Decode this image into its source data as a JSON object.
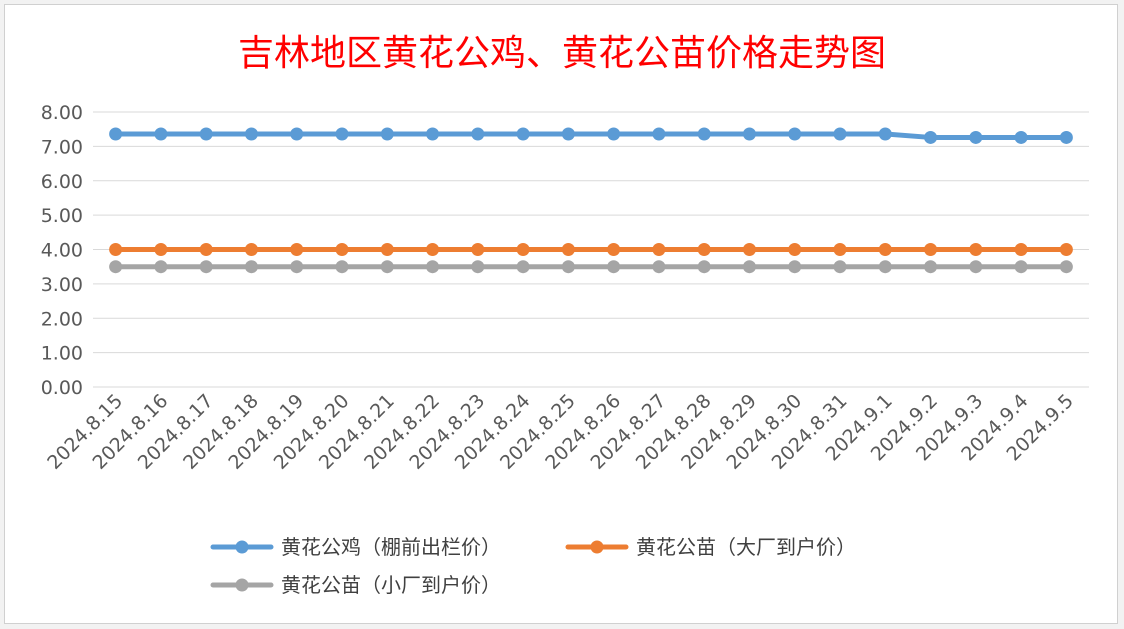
{
  "chart_data": {
    "type": "line",
    "title": "吉林地区黄花公鸡、黄花公苗价格走势图",
    "xlabel": "",
    "ylabel": "",
    "categories": [
      "2024.8.15",
      "2024.8.16",
      "2024.8.17",
      "2024.8.18",
      "2024.8.19",
      "2024.8.20",
      "2024.8.21",
      "2024.8.22",
      "2024.8.23",
      "2024.8.24",
      "2024.8.25",
      "2024.8.26",
      "2024.8.27",
      "2024.8.28",
      "2024.8.29",
      "2024.8.30",
      "2024.8.31",
      "2024.9.1",
      "2024.9.2",
      "2024.9.3",
      "2024.9.4",
      "2024.9.5"
    ],
    "ylim": [
      0,
      8
    ],
    "yticks": [
      "0.00",
      "1.00",
      "2.00",
      "3.00",
      "4.00",
      "5.00",
      "6.00",
      "7.00",
      "8.00"
    ],
    "grid": true,
    "legend_position": "bottom",
    "series": [
      {
        "name": "黄花公鸡（棚前出栏价）",
        "color": "#5b9bd5",
        "values": [
          7.36,
          7.36,
          7.36,
          7.36,
          7.36,
          7.36,
          7.36,
          7.36,
          7.36,
          7.36,
          7.36,
          7.36,
          7.36,
          7.36,
          7.36,
          7.36,
          7.36,
          7.36,
          7.26,
          7.26,
          7.26,
          7.26
        ]
      },
      {
        "name": "黄花公苗（大厂到户价）",
        "color": "#ed7d31",
        "values": [
          4.0,
          4.0,
          4.0,
          4.0,
          4.0,
          4.0,
          4.0,
          4.0,
          4.0,
          4.0,
          4.0,
          4.0,
          4.0,
          4.0,
          4.0,
          4.0,
          4.0,
          4.0,
          4.0,
          4.0,
          4.0,
          4.0
        ]
      },
      {
        "name": "黄花公苗（小厂到户价）",
        "color": "#a5a5a5",
        "values": [
          3.5,
          3.5,
          3.5,
          3.5,
          3.5,
          3.5,
          3.5,
          3.5,
          3.5,
          3.5,
          3.5,
          3.5,
          3.5,
          3.5,
          3.5,
          3.5,
          3.5,
          3.5,
          3.5,
          3.5,
          3.5,
          3.5
        ]
      }
    ]
  }
}
